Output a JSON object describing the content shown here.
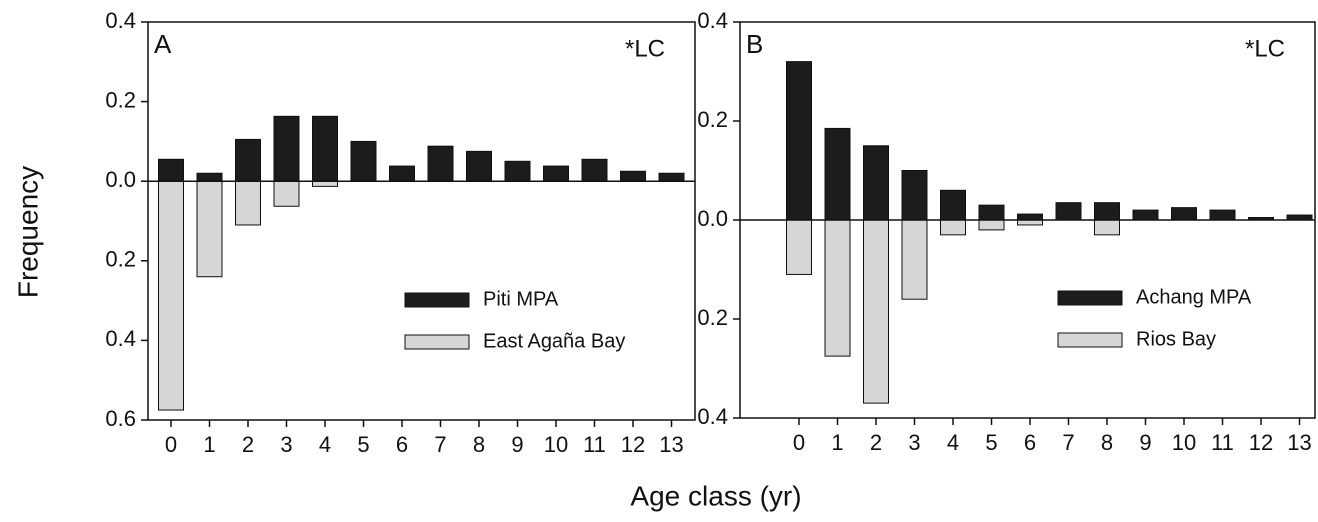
{
  "shared": {
    "y_label": "Frequency",
    "x_label": "Age class (yr)"
  },
  "chart_data": [
    {
      "type": "bar",
      "panel_label": "A",
      "annotation": "*LC",
      "categories": [
        "0",
        "1",
        "2",
        "3",
        "4",
        "5",
        "6",
        "7",
        "8",
        "9",
        "10",
        "11",
        "12",
        "13"
      ],
      "series": [
        {
          "name": "Piti MPA",
          "color": "#1c1c1c",
          "values": [
            0.055,
            0.02,
            0.105,
            0.163,
            0.163,
            0.1,
            0.038,
            0.088,
            0.075,
            0.05,
            0.038,
            0.055,
            0.025,
            0.02
          ]
        },
        {
          "name": "East Agaña Bay",
          "color": "#d4d6d8",
          "values": [
            -0.575,
            -0.24,
            -0.11,
            -0.063,
            -0.013,
            0,
            0,
            0,
            0,
            0,
            0,
            0,
            0,
            0
          ]
        }
      ],
      "ylim": [
        -0.6,
        0.4
      ],
      "yticks": [
        0.4,
        0.2,
        {
          "value": 0,
          "label": "0.0"
        },
        {
          "value": -0.2,
          "label": "0.2"
        },
        {
          "value": -0.4,
          "label": "0.4"
        },
        {
          "value": -0.6,
          "label": "0.6"
        }
      ]
    },
    {
      "type": "bar",
      "panel_label": "B",
      "annotation": "*LC",
      "categories": [
        "0",
        "1",
        "2",
        "3",
        "4",
        "5",
        "6",
        "7",
        "8",
        "9",
        "10",
        "11",
        "12",
        "13"
      ],
      "series": [
        {
          "name": "Achang MPA",
          "color": "#1c1c1c",
          "values": [
            0.32,
            0.185,
            0.15,
            0.1,
            0.06,
            0.03,
            0.012,
            0.035,
            0.035,
            0.02,
            0.025,
            0.02,
            0.005,
            0.01
          ]
        },
        {
          "name": "Rios Bay",
          "color": "#d4d6d8",
          "values": [
            -0.11,
            -0.275,
            -0.37,
            -0.16,
            -0.03,
            -0.02,
            -0.01,
            0,
            -0.03,
            0,
            0,
            0,
            0,
            0
          ]
        }
      ],
      "ylim": [
        -0.4,
        0.4
      ],
      "yticks": [
        0.4,
        0.2,
        {
          "value": 0,
          "label": "0.0"
        },
        {
          "value": -0.2,
          "label": "0.2"
        },
        {
          "value": -0.4,
          "label": "0.4"
        }
      ]
    }
  ]
}
